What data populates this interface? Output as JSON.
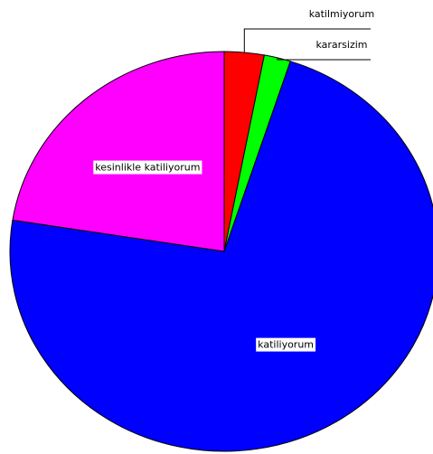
{
  "chart_data": {
    "type": "pie",
    "categories": [
      "katilmiyorum",
      "kararsizim",
      "katiliyorum",
      "kesinlikle katiliyorum"
    ],
    "values": [
      3,
      2,
      72.5,
      22.5
    ],
    "colors": [
      "#ff0000",
      "#00ff00",
      "#0000ff",
      "#ff00ff"
    ]
  }
}
